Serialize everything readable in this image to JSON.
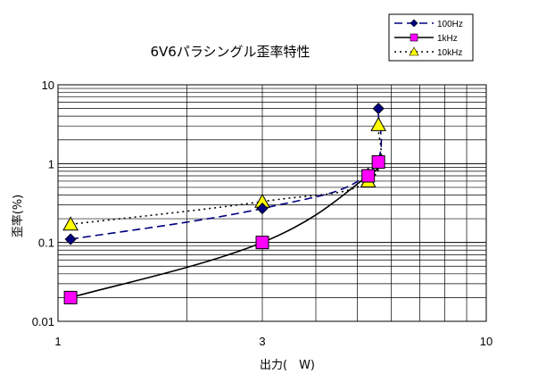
{
  "chart_data": {
    "type": "line",
    "title": "6V6パラシングル歪率特性",
    "xlabel": "出力(　W)",
    "ylabel": "歪率(%)",
    "xscale": "log",
    "yscale": "log",
    "xlim": [
      1,
      10
    ],
    "ylim": [
      0.01,
      10
    ],
    "x_tick_labels": [
      {
        "value": 1,
        "label": "1"
      },
      {
        "value": 3,
        "label": "3"
      },
      {
        "value": 10,
        "label": "10"
      }
    ],
    "y_tick_labels": [
      {
        "value": 0.01,
        "label": "0.01"
      },
      {
        "value": 0.1,
        "label": "0.1"
      },
      {
        "value": 1,
        "label": "1"
      },
      {
        "value": 10,
        "label": "10"
      }
    ],
    "grid": true,
    "legend_position": "top-right",
    "series": [
      {
        "name": "100Hz",
        "color": "#000080",
        "marker": "diamond",
        "marker_color": "#000080",
        "line_style": "dashed",
        "x": [
          1.07,
          3.0,
          5.3,
          5.6
        ],
        "y": [
          0.11,
          0.27,
          0.75,
          5.0
        ]
      },
      {
        "name": "1kHz",
        "color": "#000000",
        "marker": "square",
        "marker_color": "#ff00ff",
        "line_style": "solid",
        "x": [
          1.07,
          3.0,
          5.3,
          5.6
        ],
        "y": [
          0.02,
          0.1,
          0.7,
          1.05
        ]
      },
      {
        "name": "10kHz",
        "color": "#000000",
        "marker": "triangle",
        "marker_color": "#ffff00",
        "line_style": "dotted",
        "x": [
          1.07,
          3.0,
          5.3,
          5.6
        ],
        "y": [
          0.17,
          0.33,
          0.6,
          3.1
        ]
      }
    ]
  }
}
